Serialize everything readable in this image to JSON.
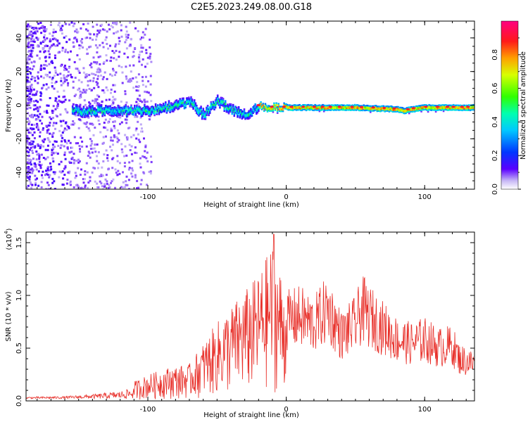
{
  "title": "C2E5.2023.249.08.00.G18",
  "chart_data": [
    {
      "type": "heatmap",
      "xlabel": "Height of straight line (km)",
      "ylabel": "Frequency (Hz)",
      "xlim": [
        -188,
        136
      ],
      "ylim": [
        -50,
        50
      ],
      "xticks": [
        -100,
        0,
        100
      ],
      "yticks": [
        -40,
        -20,
        0,
        20,
        40
      ],
      "colorbar": {
        "label": "Normalized spectral amplitude",
        "range": [
          0,
          1
        ],
        "ticks": [
          "0.0",
          "0.2",
          "0.4",
          "0.6",
          "0.8"
        ]
      },
      "ridge": {
        "description_points": [
          [
            -150,
            -3
          ],
          [
            -130,
            -3
          ],
          [
            -100,
            -3
          ],
          [
            -80,
            0
          ],
          [
            -70,
            2
          ],
          [
            -50,
            3
          ],
          [
            -60,
            -5
          ],
          [
            -40,
            -2
          ],
          [
            -30,
            -6
          ],
          [
            -20,
            0
          ],
          [
            -10,
            -1
          ],
          [
            0,
            -1
          ],
          [
            50,
            -1
          ],
          [
            80,
            -2
          ],
          [
            85,
            -3
          ],
          [
            90,
            -2
          ],
          [
            100,
            -1
          ],
          [
            136,
            -1
          ]
        ]
      }
    },
    {
      "type": "line",
      "xlabel": "Height of straight line (km)",
      "ylabel": "SNR (10 * v/v)",
      "yscale_label": "(x10",
      "yscale_exp": "4",
      "xlim": [
        -188,
        136
      ],
      "ylim": [
        0,
        1.6
      ],
      "xticks": [
        -100,
        0,
        100
      ],
      "yticks": [
        "0.0",
        "0.5",
        "1.0",
        "1.5"
      ],
      "color": "#e8302a",
      "envelope": [
        [
          -188,
          0.03
        ],
        [
          -160,
          0.04
        ],
        [
          -140,
          0.07
        ],
        [
          -120,
          0.12
        ],
        [
          -100,
          0.25
        ],
        [
          -85,
          0.32
        ],
        [
          -70,
          0.35
        ],
        [
          -60,
          0.55
        ],
        [
          -50,
          0.75
        ],
        [
          -40,
          0.9
        ],
        [
          -30,
          1.05
        ],
        [
          -20,
          1.2
        ],
        [
          -10,
          1.5
        ],
        [
          0,
          1.05
        ],
        [
          10,
          1.1
        ],
        [
          20,
          1.0
        ],
        [
          30,
          1.2
        ],
        [
          40,
          0.85
        ],
        [
          50,
          1.0
        ],
        [
          55,
          1.2
        ],
        [
          60,
          1.1
        ],
        [
          70,
          0.95
        ],
        [
          80,
          0.8
        ],
        [
          90,
          0.75
        ],
        [
          100,
          0.8
        ],
        [
          110,
          0.7
        ],
        [
          120,
          0.72
        ],
        [
          125,
          0.55
        ],
        [
          136,
          0.48
        ]
      ],
      "peak": [
        -9,
        1.58
      ]
    }
  ]
}
